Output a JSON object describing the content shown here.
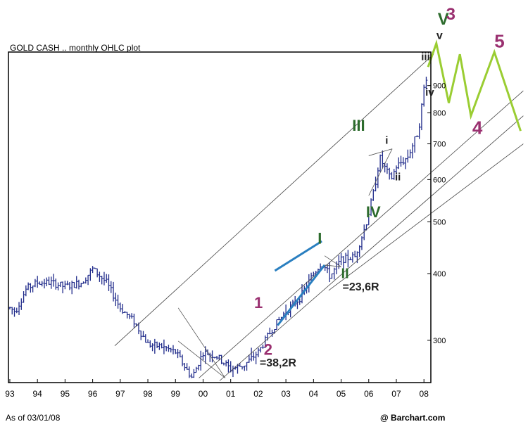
{
  "chart_data": {
    "type": "ohlc",
    "title": "GOLD CASH .. monthly OHLC plot",
    "footer_left": "As of 03/01/08",
    "footer_right": "@ Barchart.com",
    "scale": "log",
    "ylim": [
      250,
      1040
    ],
    "xlim": [
      1992.95,
      2008.25
    ],
    "x_ticks": [
      {
        "label": "93",
        "t": 1993.0
      },
      {
        "label": "94",
        "t": 1994.0
      },
      {
        "label": "95",
        "t": 1995.0
      },
      {
        "label": "96",
        "t": 1996.0
      },
      {
        "label": "97",
        "t": 1997.0
      },
      {
        "label": "98",
        "t": 1998.0
      },
      {
        "label": "99",
        "t": 1999.0
      },
      {
        "label": "00",
        "t": 2000.0
      },
      {
        "label": "01",
        "t": 2001.0
      },
      {
        "label": "02",
        "t": 2002.0
      },
      {
        "label": "03",
        "t": 2003.0
      },
      {
        "label": "04",
        "t": 2004.0
      },
      {
        "label": "05",
        "t": 2005.0
      },
      {
        "label": "06",
        "t": 2006.0
      },
      {
        "label": "07",
        "t": 2007.0
      },
      {
        "label": "08",
        "t": 2008.0
      }
    ],
    "y_ticks": [
      {
        "label": "300",
        "v": 300
      },
      {
        "label": "400",
        "v": 400
      },
      {
        "label": "500",
        "v": 500
      },
      {
        "label": "600",
        "v": 600
      },
      {
        "label": "700",
        "v": 700
      },
      {
        "label": "800",
        "v": 800
      },
      {
        "label": "900",
        "v": 900
      }
    ],
    "price_anchors": [
      [
        1993.0,
        345
      ],
      [
        1993.2,
        340
      ],
      [
        1993.6,
        375
      ],
      [
        1994.0,
        385
      ],
      [
        1994.5,
        385
      ],
      [
        1995.0,
        378
      ],
      [
        1995.6,
        385
      ],
      [
        1996.0,
        408
      ],
      [
        1996.5,
        385
      ],
      [
        1997.0,
        345
      ],
      [
        1997.5,
        325
      ],
      [
        1998.0,
        295
      ],
      [
        1998.5,
        292
      ],
      [
        1999.0,
        285
      ],
      [
        1999.6,
        255
      ],
      [
        1999.8,
        270
      ],
      [
        2000.0,
        285
      ],
      [
        2000.5,
        280
      ],
      [
        2001.0,
        265
      ],
      [
        2001.5,
        270
      ],
      [
        2002.0,
        285
      ],
      [
        2002.5,
        315
      ],
      [
        2003.0,
        340
      ],
      [
        2003.5,
        360
      ],
      [
        2004.0,
        400
      ],
      [
        2004.3,
        420
      ],
      [
        2004.6,
        395
      ],
      [
        2005.0,
        425
      ],
      [
        2005.5,
        430
      ],
      [
        2005.9,
        495
      ],
      [
        2006.2,
        575
      ],
      [
        2006.4,
        660
      ],
      [
        2006.8,
        600
      ],
      [
        2007.0,
        635
      ],
      [
        2007.4,
        660
      ],
      [
        2007.8,
        740
      ],
      [
        2008.0,
        890
      ],
      [
        2008.15,
        970
      ]
    ],
    "wave_labels": [
      {
        "text": "1",
        "t": 2001.85,
        "v": 345,
        "color": "#9a3070",
        "size": 22
      },
      {
        "text": "2",
        "t": 2002.2,
        "v": 282,
        "color": "#9a3070",
        "size": 22
      },
      {
        "text": "=38,2R",
        "t": 2002.05,
        "v": 268,
        "color": "#222222",
        "size": 16
      },
      {
        "text": "I",
        "t": 2004.15,
        "v": 455,
        "color": "#2c6b2c",
        "size": 22
      },
      {
        "text": "II",
        "t": 2005.0,
        "v": 392,
        "color": "#2c6b2c",
        "size": 20
      },
      {
        "text": "=23,6R",
        "t": 2005.05,
        "v": 372,
        "color": "#222222",
        "size": 16
      },
      {
        "text": "III",
        "t": 2005.4,
        "v": 740,
        "color": "#2c6b2c",
        "size": 22
      },
      {
        "text": "IV",
        "t": 2005.9,
        "v": 510,
        "color": "#2c6b2c",
        "size": 22
      },
      {
        "text": "i",
        "t": 2006.6,
        "v": 700,
        "color": "#222222",
        "size": 15
      },
      {
        "text": "ii",
        "t": 2006.95,
        "v": 598,
        "color": "#222222",
        "size": 15
      },
      {
        "text": "iii",
        "t": 2007.9,
        "v": 1005,
        "color": "#222222",
        "size": 15
      },
      {
        "text": "iv",
        "t": 2008.05,
        "v": 862,
        "color": "#222222",
        "size": 15
      },
      {
        "text": "v",
        "t": 2008.45,
        "v": 1100,
        "color": "#222222",
        "size": 16
      },
      {
        "text": "V",
        "t": 2008.5,
        "v": 1170,
        "color": "#2c6b2c",
        "size": 24
      },
      {
        "text": "3",
        "t": 2008.8,
        "v": 1195,
        "color": "#9a3070",
        "size": 24
      },
      {
        "text": "4",
        "t": 2009.75,
        "v": 730,
        "color": "#9a3070",
        "size": 26
      },
      {
        "text": "5",
        "t": 2010.55,
        "v": 1060,
        "color": "#9a3070",
        "size": 26
      }
    ],
    "channel_lines": [
      {
        "from": [
          1996.8,
          293
        ],
        "to": [
          2008.35,
          1030
        ]
      },
      {
        "from": [
          1999.85,
          255
        ],
        "to": [
          2011.6,
          880
        ]
      },
      {
        "from": [
          2000.6,
          252
        ],
        "to": [
          2011.6,
          790
        ]
      },
      {
        "from": [
          2004.55,
          372
        ],
        "to": [
          2011.6,
          700
        ]
      }
    ],
    "thin_lines": [
      {
        "from": [
          1999.1,
          345
        ],
        "to": [
          2000.8,
          255
        ]
      },
      {
        "from": [
          1999.1,
          299
        ],
        "to": [
          2000.8,
          255
        ]
      },
      {
        "from": [
          2004.4,
          432
        ],
        "to": [
          2005.0,
          412
        ]
      },
      {
        "from": [
          2004.4,
          415
        ],
        "to": [
          2005.0,
          412
        ]
      },
      {
        "from": [
          2006.0,
          665
        ],
        "to": [
          2006.85,
          685
        ]
      },
      {
        "from": [
          2006.0,
          560
        ],
        "to": [
          2006.85,
          685
        ]
      }
    ],
    "blue_lines": [
      {
        "from": [
          2002.6,
          405
        ],
        "to": [
          2004.3,
          460
        ]
      },
      {
        "from": [
          2002.7,
          320
        ],
        "to": [
          2004.4,
          415
        ]
      }
    ],
    "projection": [
      [
        2008.15,
        975
      ],
      [
        2008.45,
        1080
      ],
      [
        2008.9,
        835
      ],
      [
        2009.3,
        1030
      ],
      [
        2009.7,
        790
      ],
      [
        2010.55,
        1040
      ],
      [
        2011.5,
        740
      ]
    ]
  }
}
